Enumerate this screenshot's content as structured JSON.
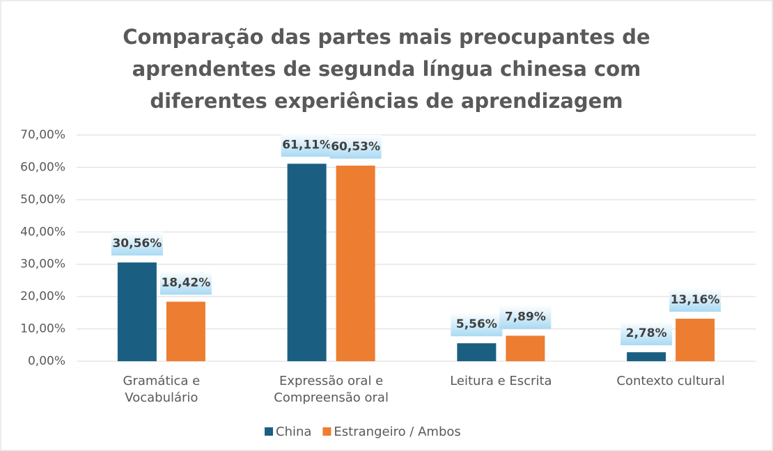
{
  "chart_data": {
    "type": "bar",
    "title": "Comparação das partes mais preocupantes de aprendentes de segunda língua chinesa com diferentes experiências de aprendizagem",
    "categories": [
      "Gramática e Vocabulário",
      "Expressão oral e Compreensão oral",
      "Leitura e Escrita",
      "Contexto cultural"
    ],
    "series": [
      {
        "name": "China",
        "color": "#1a5f82",
        "values": [
          30.56,
          61.11,
          5.56,
          2.78
        ],
        "value_labels": [
          "30,56%",
          "61,11%",
          "5,56%",
          "2,78%"
        ]
      },
      {
        "name": "Estrangeiro / Ambos",
        "color": "#ed7d31",
        "values": [
          18.42,
          60.53,
          7.89,
          13.16
        ],
        "value_labels": [
          "18,42%",
          "60,53%",
          "7,89%",
          "13,16%"
        ]
      }
    ],
    "ylim": [
      0,
      70
    ],
    "yticks": [
      {
        "value": 0,
        "label": "0,00%"
      },
      {
        "value": 10,
        "label": "10,00%"
      },
      {
        "value": 20,
        "label": "20,00%"
      },
      {
        "value": 30,
        "label": "30,00%"
      },
      {
        "value": 40,
        "label": "40,00%"
      },
      {
        "value": 50,
        "label": "50,00%"
      },
      {
        "value": 60,
        "label": "60,00%"
      },
      {
        "value": 70,
        "label": "70,00%"
      }
    ],
    "grid": true,
    "legend": "bottom"
  }
}
